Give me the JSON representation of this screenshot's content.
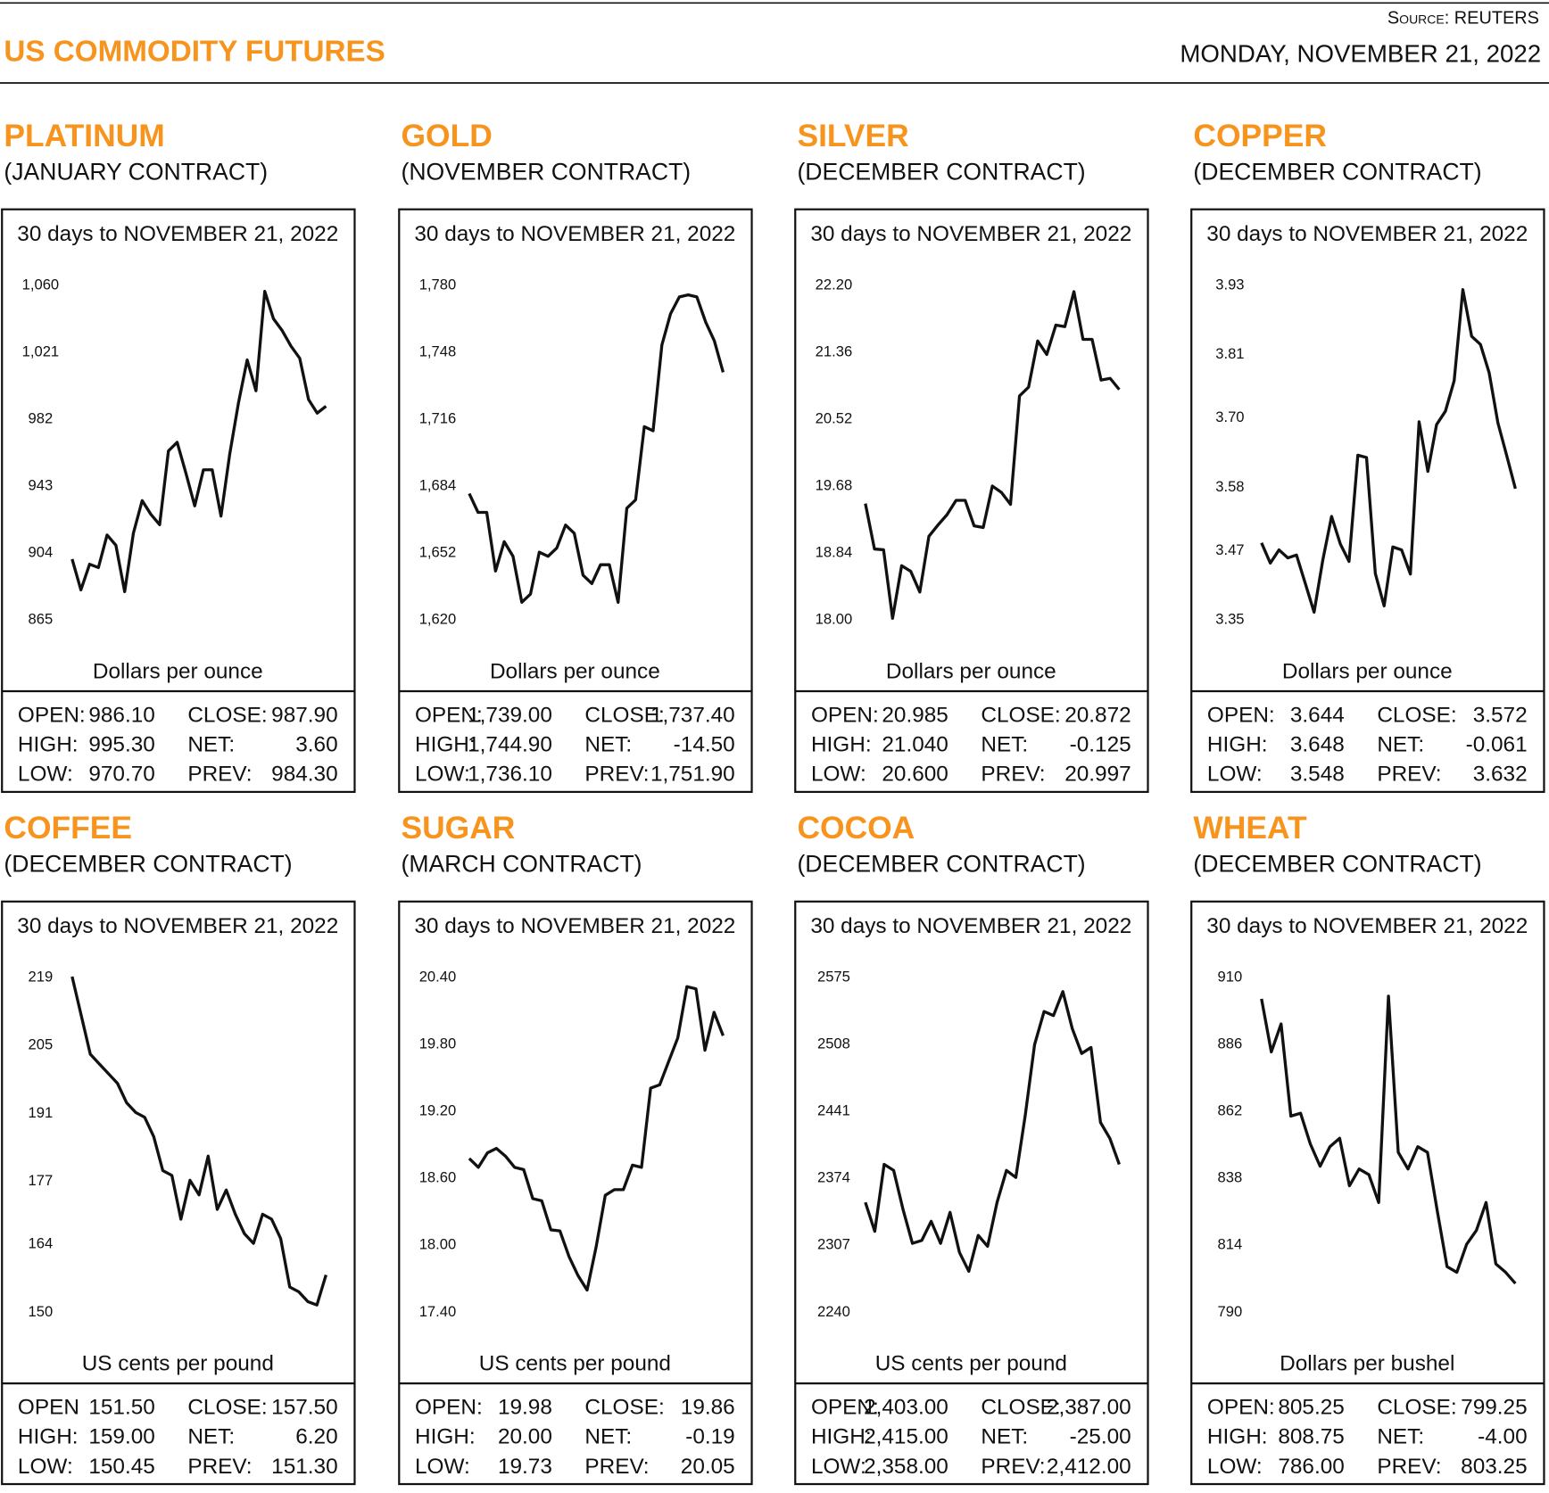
{
  "header": {
    "title": "US COMMODITY FUTURES",
    "source": "Source: REUTERS",
    "date": "MONDAY, NOVEMBER 21, 2022"
  },
  "chart_data": [
    {
      "type": "line",
      "title": "PLATINUM",
      "subtitle": "(JANUARY CONTRACT)",
      "period": "30 days to NOVEMBER 21, 2022",
      "ylabel": "Dollars per ounce",
      "color": "#111111",
      "ylim": [
        865,
        1060
      ],
      "yticks": [
        865,
        904,
        943,
        982,
        {
          "value": 1021,
          "label": "1,021"
        },
        {
          "value": 1060,
          "label": "1,060"
        }
      ],
      "values": [
        900,
        882,
        897,
        895,
        914,
        908,
        881,
        915,
        934,
        926,
        920,
        963,
        968,
        950,
        931,
        952,
        952,
        925,
        961,
        991,
        1016,
        998,
        1056,
        1040,
        1033,
        1024,
        1017,
        993,
        985,
        989
      ],
      "stats": [
        [
          "OPEN:",
          "986.10",
          "CLOSE:",
          "987.90"
        ],
        [
          "HIGH:",
          "995.30",
          "NET:",
          "3.60"
        ],
        [
          "LOW:",
          "970.70",
          "PREV:",
          "984.30"
        ]
      ]
    },
    {
      "type": "line",
      "title": "GOLD",
      "subtitle": "(NOVEMBER CONTRACT)",
      "period": "30 days to NOVEMBER 21, 2022",
      "ylabel": "Dollars per ounce",
      "color": "#111111",
      "ylim": [
        1620,
        1780
      ],
      "yticks": [
        {
          "value": 1620,
          "label": "1,620"
        },
        {
          "value": 1652,
          "label": "1,652"
        },
        {
          "value": 1684,
          "label": "1,684"
        },
        {
          "value": 1716,
          "label": "1,716"
        },
        {
          "value": 1748,
          "label": "1,748"
        },
        {
          "value": 1780,
          "label": "1,780"
        }
      ],
      "values": [
        1680,
        1671,
        1671,
        1643,
        1657,
        1650,
        1628,
        1632,
        1652,
        1650,
        1654,
        1665,
        1661,
        1641,
        1637,
        1646,
        1646,
        1628,
        1673,
        1677,
        1712,
        1710,
        1751,
        1766,
        1774,
        1775,
        1774,
        1762,
        1753,
        1738
      ],
      "stats": [
        [
          "OPEN:",
          "1,739.00",
          "CLOSE:",
          "1,737.40"
        ],
        [
          "HIGH:",
          "1,744.90",
          "NET:",
          "-14.50"
        ],
        [
          "LOW:",
          "1,736.10",
          "PREV:",
          "1,751.90"
        ]
      ]
    },
    {
      "type": "line",
      "title": "SILVER",
      "subtitle": "(DECEMBER CONTRACT)",
      "period": "30 days to NOVEMBER 21, 2022",
      "ylabel": "Dollars per ounce",
      "color": "#111111",
      "ylim": [
        18,
        22.2
      ],
      "yticks": [
        {
          "value": 18,
          "label": "18.00"
        },
        18.84,
        19.68,
        20.52,
        21.36,
        {
          "value": 22.2,
          "label": "22.20"
        }
      ],
      "values": [
        19.45,
        18.88,
        18.87,
        18.01,
        18.67,
        18.6,
        18.34,
        19.04,
        19.18,
        19.31,
        19.49,
        19.49,
        19.17,
        19.15,
        19.67,
        19.59,
        19.44,
        20.8,
        20.91,
        21.49,
        21.32,
        21.69,
        21.67,
        22.11,
        21.51,
        21.51,
        21.0,
        21.02,
        20.88
      ],
      "stats": [
        [
          "OPEN:",
          "20.985",
          "CLOSE:",
          "20.872"
        ],
        [
          "HIGH:",
          "21.040",
          "NET:",
          "-0.125"
        ],
        [
          "LOW:",
          "20.600",
          "PREV:",
          "20.997"
        ]
      ]
    },
    {
      "type": "line",
      "title": "COPPER",
      "subtitle": "(DECEMBER CONTRACT)",
      "period": "30 days to NOVEMBER 21, 2022",
      "ylabel": "Dollars per ounce",
      "color": "#111111",
      "ylim": [
        3.35,
        3.93
      ],
      "yticks": [
        3.35,
        3.47,
        3.58,
        {
          "value": 3.7,
          "label": "3.70"
        },
        3.81,
        3.93
      ],
      "values": [
        3.482,
        3.447,
        3.47,
        3.456,
        3.461,
        3.412,
        3.362,
        3.452,
        3.528,
        3.48,
        3.45,
        3.634,
        3.63,
        3.429,
        3.373,
        3.475,
        3.47,
        3.428,
        3.692,
        3.606,
        3.687,
        3.71,
        3.763,
        3.921,
        3.84,
        3.826,
        3.777,
        3.69,
        3.634,
        3.576
      ],
      "stats": [
        [
          "OPEN:",
          "3.644",
          "CLOSE:",
          "3.572"
        ],
        [
          "HIGH:",
          "3.648",
          "NET:",
          "-0.061"
        ],
        [
          "LOW:",
          "3.548",
          "PREV:",
          "3.632"
        ]
      ]
    },
    {
      "type": "line",
      "title": "COFFEE",
      "subtitle": "(DECEMBER CONTRACT)",
      "period": "30 days to NOVEMBER 21, 2022",
      "ylabel": "US cents per pound",
      "color": "#111111",
      "ylim": [
        150,
        219
      ],
      "yticks": [
        150,
        164,
        177,
        191,
        205,
        219
      ],
      "values": [
        219,
        211,
        203,
        201,
        199,
        197,
        193,
        191,
        190,
        186,
        179,
        178,
        169,
        177,
        174,
        182,
        171,
        175,
        170,
        166,
        164,
        170,
        169,
        165,
        155,
        154,
        152,
        151.3,
        157.5
      ],
      "stats": [
        [
          "OPEN",
          "151.50",
          "CLOSE:",
          "157.50"
        ],
        [
          "HIGH:",
          "159.00",
          "NET:",
          "6.20"
        ],
        [
          "LOW:",
          "150.45",
          "PREV:",
          "151.30"
        ]
      ]
    },
    {
      "type": "line",
      "title": "SUGAR",
      "subtitle": "(MARCH CONTRACT)",
      "period": "30 days to NOVEMBER 21, 2022",
      "ylabel": "US cents per pound",
      "color": "#111111",
      "ylim": [
        17.4,
        20.4
      ],
      "yticks": [
        {
          "value": 17.4,
          "label": "17.40"
        },
        {
          "value": 18,
          "label": "18.00"
        },
        {
          "value": 18.6,
          "label": "18.60"
        },
        {
          "value": 19.2,
          "label": "19.20"
        },
        {
          "value": 19.8,
          "label": "19.80"
        },
        {
          "value": 20.4,
          "label": "20.40"
        }
      ],
      "values": [
        18.77,
        18.69,
        18.82,
        18.86,
        18.79,
        18.69,
        18.67,
        18.41,
        18.39,
        18.13,
        18.12,
        17.89,
        17.72,
        17.59,
        17.98,
        18.44,
        18.49,
        18.49,
        18.71,
        18.69,
        19.4,
        19.43,
        19.64,
        19.85,
        20.31,
        20.29,
        19.74,
        20.08,
        19.87
      ],
      "stats": [
        [
          "OPEN:",
          "19.98",
          "CLOSE:",
          "19.86"
        ],
        [
          "HIGH:",
          "20.00",
          "NET:",
          "-0.19"
        ],
        [
          "LOW:",
          "19.73",
          "PREV:",
          "20.05"
        ]
      ]
    },
    {
      "type": "line",
      "title": "COCOA",
      "subtitle": "(DECEMBER CONTRACT)",
      "period": "30 days to NOVEMBER 21, 2022",
      "ylabel": "US cents per pound",
      "color": "#111111",
      "ylim": [
        2240,
        2575
      ],
      "yticks": [
        2240,
        2307,
        2374,
        2441,
        2508,
        2575
      ],
      "values": [
        2349,
        2320,
        2387,
        2381,
        2342,
        2308,
        2311,
        2330,
        2308,
        2339,
        2299,
        2280,
        2316,
        2305,
        2349,
        2381,
        2374,
        2436,
        2507,
        2540,
        2536,
        2560,
        2523,
        2498,
        2504,
        2429,
        2413,
        2387
      ],
      "stats": [
        [
          "OPEN:",
          "2,403.00",
          "CLOSE:",
          "2,387.00"
        ],
        [
          "HIGH:",
          "2,415.00",
          "NET:",
          "-25.00"
        ],
        [
          "LOW:",
          "2,358.00",
          "PREV:",
          "2,412.00"
        ]
      ]
    },
    {
      "type": "line",
      "title": "WHEAT",
      "subtitle": "(DECEMBER CONTRACT)",
      "period": "30 days to NOVEMBER 21, 2022",
      "ylabel": "Dollars per bushel",
      "color": "#111111",
      "ylim": [
        790,
        910
      ],
      "yticks": [
        790,
        814,
        838,
        862,
        886,
        910
      ],
      "values": [
        902,
        883,
        893,
        860,
        861,
        850,
        842,
        849,
        852,
        835,
        841,
        839,
        829,
        903,
        847,
        841,
        849,
        847,
        826,
        806,
        804,
        814,
        819,
        829,
        807,
        804,
        800
      ],
      "stats": [
        [
          "OPEN:",
          "805.25",
          "CLOSE:",
          "799.25"
        ],
        [
          "HIGH:",
          "808.75",
          "NET:",
          "-4.00"
        ],
        [
          "LOW:",
          "786.00",
          "PREV:",
          "803.25"
        ]
      ]
    }
  ]
}
